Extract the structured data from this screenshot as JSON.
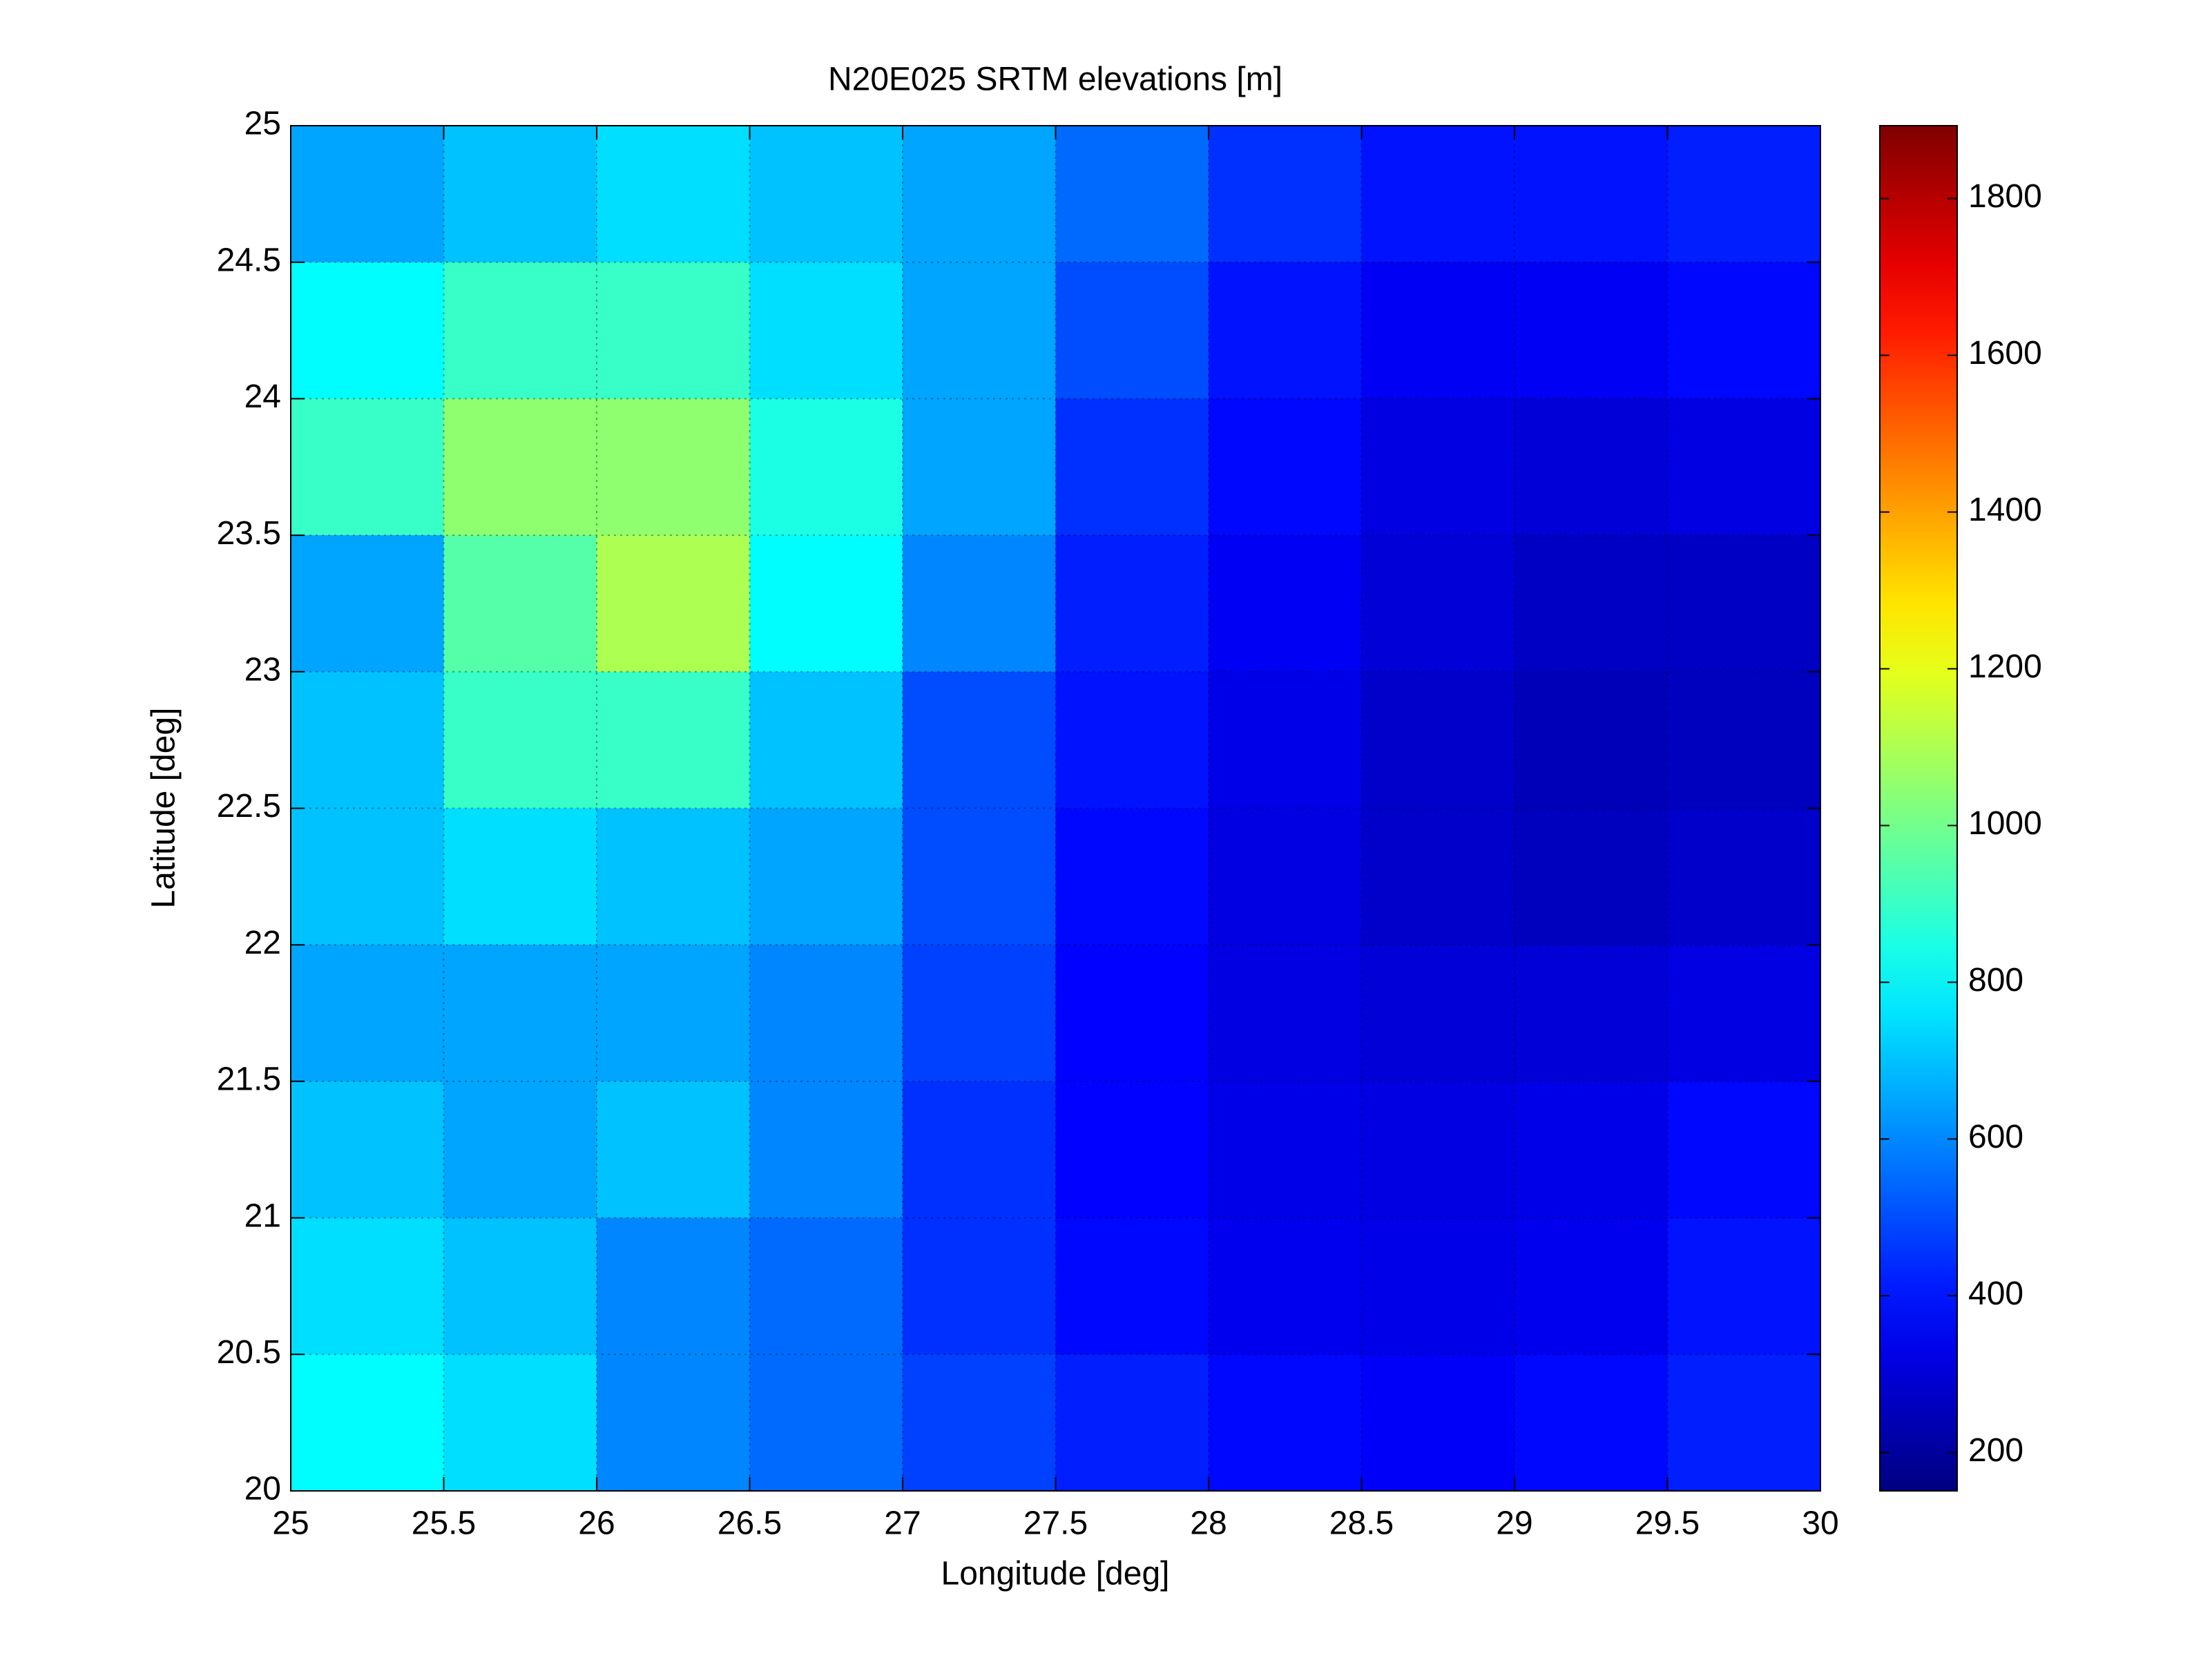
{
  "chart_data": {
    "type": "heatmap",
    "title": "N20E025 SRTM elevations [m]",
    "x_label": "Longitude [deg]",
    "y_label": "Latitude [deg]",
    "xlim": [
      25,
      30
    ],
    "ylim": [
      20,
      25
    ],
    "xticks": [
      25,
      25.5,
      26,
      26.5,
      27,
      27.5,
      28,
      28.5,
      29,
      29.5,
      30
    ],
    "yticks": [
      20,
      20.5,
      21,
      21.5,
      22,
      22.5,
      23,
      23.5,
      24,
      24.5,
      25
    ],
    "grid": true,
    "colormap": "jet",
    "clim": [
      151,
      1893
    ],
    "cticks": [
      200,
      400,
      600,
      800,
      1000,
      1200,
      1400,
      1600,
      1800
    ],
    "z": [
      [
        650,
        700,
        750,
        700,
        650,
        550,
        450,
        400,
        400,
        420
      ],
      [
        800,
        900,
        900,
        750,
        650,
        500,
        400,
        350,
        350,
        380
      ],
      [
        900,
        1050,
        1050,
        850,
        650,
        450,
        380,
        320,
        300,
        320
      ],
      [
        650,
        950,
        1100,
        800,
        600,
        420,
        350,
        300,
        270,
        270
      ],
      [
        700,
        900,
        900,
        700,
        500,
        400,
        330,
        280,
        250,
        260
      ],
      [
        700,
        750,
        700,
        650,
        500,
        380,
        320,
        280,
        260,
        280
      ],
      [
        650,
        650,
        650,
        600,
        480,
        370,
        320,
        300,
        300,
        320
      ],
      [
        700,
        650,
        700,
        600,
        450,
        370,
        330,
        320,
        330,
        380
      ],
      [
        750,
        700,
        600,
        550,
        450,
        380,
        340,
        330,
        340,
        400
      ],
      [
        800,
        750,
        600,
        550,
        480,
        420,
        380,
        360,
        380,
        420
      ]
    ]
  }
}
